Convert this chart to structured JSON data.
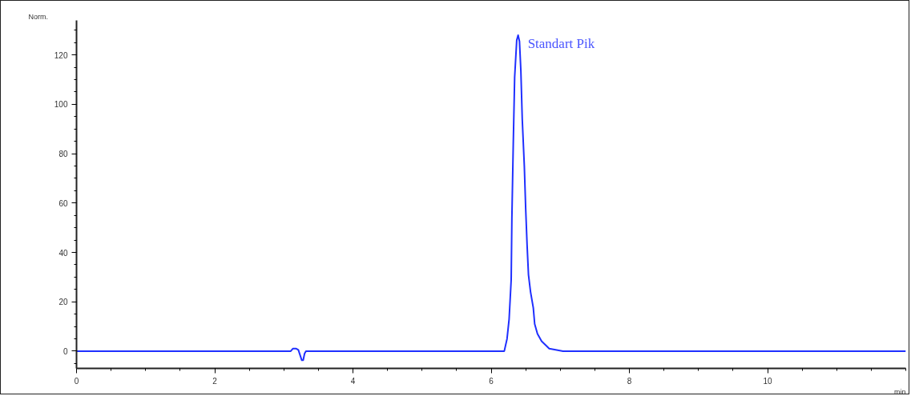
{
  "chart_data": {
    "type": "line",
    "xlabel": "min",
    "ylabel": "Norm.",
    "xlim": [
      0,
      12
    ],
    "ylim": [
      -7,
      134
    ],
    "xticks": [
      0,
      2,
      4,
      6,
      8,
      10
    ],
    "yticks": [
      0,
      20,
      40,
      60,
      80,
      100,
      120
    ],
    "grid": false,
    "marker": "none",
    "line_style": "solid",
    "annotations": [
      {
        "text": "Standart Pik",
        "x": 6.39,
        "y": 128
      }
    ],
    "series": [
      {
        "color": "#1f2fff",
        "x": [
          0,
          3.1,
          3.13,
          3.18,
          3.21,
          3.24,
          3.26,
          3.28,
          3.3,
          3.32,
          6.19,
          6.23,
          6.26,
          6.29,
          6.3,
          6.32,
          6.34,
          6.37,
          6.39,
          6.41,
          6.43,
          6.45,
          6.48,
          6.5,
          6.52,
          6.54,
          6.57,
          6.61,
          6.63,
          6.67,
          6.73,
          6.84,
          7.04,
          12
        ],
        "values": [
          0,
          0,
          1,
          1,
          0.5,
          -2,
          -3.7,
          -3.7,
          -1,
          0,
          0,
          5,
          13,
          29,
          54,
          84,
          111,
          126,
          128,
          125.5,
          113.6,
          94,
          75,
          57.5,
          43,
          31,
          24,
          17.5,
          11,
          7,
          4,
          1,
          0,
          0
        ]
      }
    ]
  }
}
